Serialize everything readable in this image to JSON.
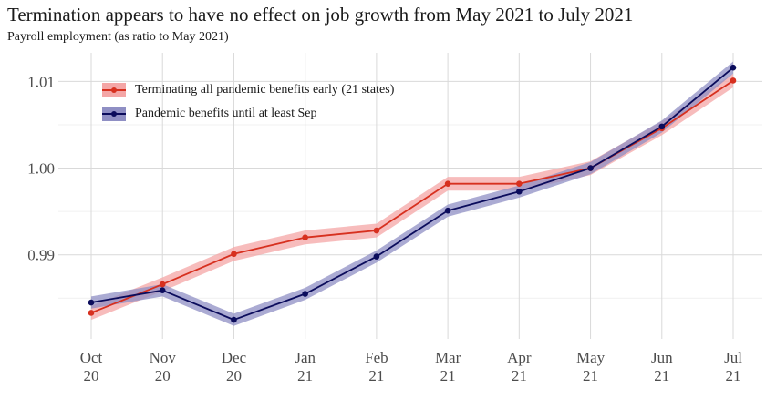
{
  "chart_data": {
    "type": "line",
    "title": "Termination appears to have no effect on job growth from May 2021 to July 2021",
    "subtitle": "Payroll employment (as ratio to May 2021)",
    "xlabel": "",
    "ylabel": "",
    "categories": [
      {
        "month": "Oct",
        "year": "20"
      },
      {
        "month": "Nov",
        "year": "20"
      },
      {
        "month": "Dec",
        "year": "20"
      },
      {
        "month": "Jan",
        "year": "21"
      },
      {
        "month": "Feb",
        "year": "21"
      },
      {
        "month": "Mar",
        "year": "21"
      },
      {
        "month": "Apr",
        "year": "21"
      },
      {
        "month": "May",
        "year": "21"
      },
      {
        "month": "Jun",
        "year": "21"
      },
      {
        "month": "Jul",
        "year": "21"
      }
    ],
    "yticks": [
      "0.99",
      "1.00",
      "1.01"
    ],
    "ytick_values": [
      0.99,
      1.0,
      1.01
    ],
    "ylim": [
      0.9803,
      1.0133
    ],
    "series": [
      {
        "name": "Terminating all pandemic benefits early (21 states)",
        "color": "#d7301f",
        "band_color": "#f4a6a6",
        "values": [
          0.9833,
          0.9866,
          0.9901,
          0.992,
          0.9928,
          0.9982,
          0.9982,
          1.0,
          1.0046,
          1.0101
        ],
        "band_halfwidth": 0.0008
      },
      {
        "name": "Pandemic benefits until at least Sep",
        "color": "#0b0c5c",
        "band_color": "#8f8fc4",
        "values": [
          0.9845,
          0.9859,
          0.9825,
          0.9855,
          0.9898,
          0.9951,
          0.9973,
          1.0,
          1.0048,
          1.0116
        ],
        "band_halfwidth": 0.0007
      }
    ]
  }
}
